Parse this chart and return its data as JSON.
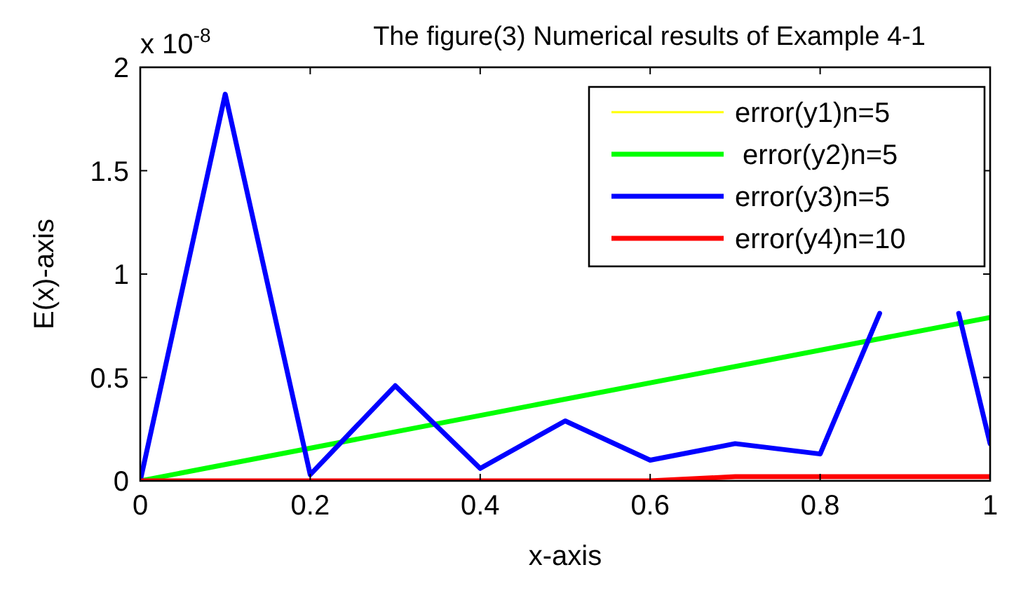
{
  "chart_data": {
    "type": "line",
    "title": "The figure(3) Numerical results of Example 4-1",
    "xlabel": "x-axis",
    "ylabel": "E(x)-axis",
    "annotations": [
      "x 10$^{-8}$"
    ],
    "x": [
      0,
      0.1,
      0.2,
      0.3,
      0.4,
      0.5,
      0.6,
      0.7,
      0.8,
      0.9,
      1
    ],
    "series": [
      {
        "name": "error(y1)n=5",
        "color": "#ffff00",
        "values": [
          null,
          null,
          null,
          null,
          null,
          null,
          null,
          null,
          null,
          null,
          null
        ]
      },
      {
        "name": " error(y2)n=5",
        "color": "#00ff00",
        "x": [
          0,
          1
        ],
        "values": [
          0,
          0.79
        ]
      },
      {
        "name": "error(y3)n=5",
        "color": "#0000ff",
        "x": [
          0,
          0.1,
          0.2,
          0.3,
          0.4,
          0.5,
          0.6,
          0.7,
          0.8,
          0.87,
          0.9,
          0.963,
          1
        ],
        "values": [
          0,
          1.87,
          0.03,
          0.46,
          0.06,
          0.29,
          0.1,
          0.18,
          0.13,
          0.81,
          null,
          0.81,
          0.18
        ]
      },
      {
        "name": "error(y4)n=10",
        "color": "#ff0000",
        "values": [
          0,
          0,
          0,
          0,
          0,
          0,
          0,
          0.02,
          0.02,
          0.02,
          0.02
        ]
      }
    ],
    "xlim": [
      0,
      1
    ],
    "ylim": [
      0,
      2
    ],
    "xticks": [
      0,
      0.2,
      0.4,
      0.6,
      0.8,
      1
    ],
    "yticks": [
      0,
      0.5,
      1,
      1.5,
      2
    ],
    "grid": false,
    "legend": "top right",
    "line_style": "solid"
  }
}
